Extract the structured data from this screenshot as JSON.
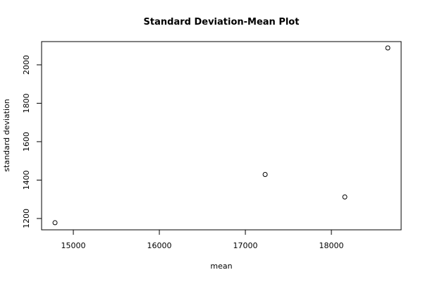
{
  "chart_data": {
    "type": "scatter",
    "title": "Standard Deviation-Mean Plot",
    "x_label": "mean",
    "y_label": "standard deviation",
    "x": [
      14787,
      17230,
      18156,
      18656
    ],
    "values": [
      1178,
      1429,
      1312,
      2088
    ],
    "color": "#000000",
    "xlim": [
      14631,
      18811
    ],
    "ylim": [
      1141,
      2121
    ],
    "xticks": [
      15000,
      16000,
      17000,
      18000
    ],
    "yticks": [
      1200,
      1400,
      1600,
      1800,
      2000
    ]
  }
}
